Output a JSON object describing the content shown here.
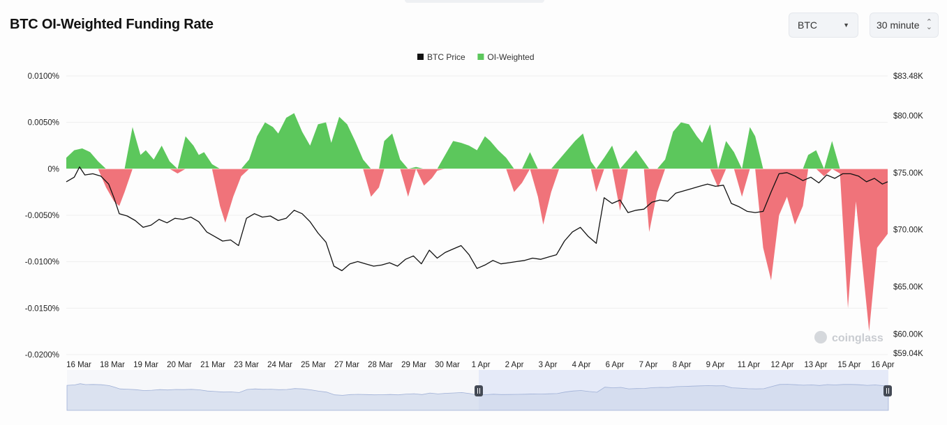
{
  "header": {
    "title": "BTC OI-Weighted Funding Rate",
    "coin_select": "BTC",
    "interval_select": "30 minute"
  },
  "watermark": "coinglass",
  "colors": {
    "positive": "#5cc75c",
    "negative": "#f0737a",
    "price": "#111111",
    "navigator": "#dfe6f7"
  },
  "chart_data": {
    "type": "area",
    "title": "BTC OI-Weighted Funding Rate",
    "legend": [
      {
        "name": "BTC Price",
        "color": "#111111"
      },
      {
        "name": "OI-Weighted",
        "color": "#5cc75c"
      }
    ],
    "legend_position": "top-center",
    "y_left": {
      "ticks": [
        "0.0100%",
        "0.0050%",
        "0%",
        "-0.0050%",
        "-0.0100%",
        "-0.0150%",
        "-0.0200%"
      ],
      "tick_values": [
        0.01,
        0.005,
        0,
        -0.005,
        -0.01,
        -0.015,
        -0.02
      ],
      "range": [
        -0.02,
        0.01
      ],
      "unit": "%"
    },
    "y_right": {
      "ticks": [
        "$83.48K",
        "$80.00K",
        "$75.00K",
        "$70.00K",
        "$65.00K",
        "$60.00K",
        "$59.04K"
      ],
      "tick_values": [
        83.48,
        80,
        75,
        70,
        65,
        60,
        59.04
      ],
      "range": [
        59.04,
        83.48
      ],
      "unit": "$K"
    },
    "x_ticks": [
      "16 Mar",
      "18 Mar",
      "19 Mar",
      "20 Mar",
      "21 Mar",
      "23 Mar",
      "24 Mar",
      "25 Mar",
      "27 Mar",
      "28 Mar",
      "29 Mar",
      "30 Mar",
      "1 Apr",
      "2 Apr",
      "3 Apr",
      "4 Apr",
      "6 Apr",
      "7 Apr",
      "8 Apr",
      "9 Apr",
      "11 Apr",
      "12 Apr",
      "13 Apr",
      "15 Apr",
      "16 Apr"
    ],
    "x_range": [
      0,
      31
    ],
    "series": [
      {
        "name": "OI-Weighted",
        "axis": "left",
        "x": [
          0,
          0.3,
          0.6,
          0.9,
          1.2,
          1.5,
          1.8,
          2.0,
          2.2,
          2.5,
          2.8,
          3.0,
          3.3,
          3.6,
          3.9,
          4.2,
          4.5,
          4.8,
          5.0,
          5.2,
          5.5,
          5.8,
          6.0,
          6.3,
          6.6,
          6.9,
          7.2,
          7.5,
          7.8,
          8.0,
          8.3,
          8.6,
          8.9,
          9.2,
          9.5,
          9.8,
          10.0,
          10.3,
          10.6,
          10.9,
          11.2,
          11.5,
          11.8,
          12.0,
          12.3,
          12.6,
          12.9,
          13.2,
          13.5,
          13.8,
          14.0,
          14.3,
          14.6,
          14.9,
          15.2,
          15.5,
          15.8,
          16.0,
          16.3,
          16.6,
          16.9,
          17.2,
          17.5,
          17.8,
          18.0,
          18.3,
          18.6,
          18.9,
          19.2,
          19.5,
          19.8,
          20.0,
          20.3,
          20.6,
          20.9,
          21.2,
          21.5,
          21.8,
          22.0,
          22.3,
          22.6,
          22.9,
          23.2,
          23.5,
          23.8,
          24.0,
          24.3,
          24.6,
          24.9,
          25.2,
          25.5,
          25.8,
          26.0,
          26.3,
          26.6,
          26.9,
          27.2,
          27.5,
          27.8,
          28.0,
          28.3,
          28.6,
          28.9,
          29.2,
          29.5,
          29.8,
          30.0,
          30.3,
          30.6,
          31.0
        ],
        "values": [
          0.0012,
          0.002,
          0.0022,
          0.0018,
          0.0008,
          -0.002,
          -0.0035,
          -0.004,
          -0.0025,
          0.0045,
          0.0015,
          0.002,
          0.001,
          0.0025,
          0.0008,
          -0.0005,
          0.0035,
          0.0025,
          0.0015,
          0.0018,
          0.0005,
          -0.004,
          -0.0058,
          -0.003,
          -0.0008,
          0.001,
          0.0035,
          0.005,
          0.0045,
          0.0038,
          0.0055,
          0.006,
          0.004,
          0.0025,
          0.0048,
          0.005,
          0.0028,
          0.0056,
          0.0048,
          0.003,
          0.001,
          -0.003,
          -0.002,
          0.003,
          0.0038,
          0.001,
          -0.003,
          0.0002,
          -0.0018,
          -0.001,
          -0.0002,
          0.0015,
          0.003,
          0.0028,
          0.0025,
          0.002,
          0.0035,
          0.003,
          0.002,
          0.0012,
          -0.0025,
          -0.0015,
          0.0018,
          -0.003,
          -0.006,
          -0.0025,
          0.001,
          0.002,
          0.003,
          0.0038,
          0.0008,
          -0.0025,
          0.0012,
          0.0025,
          -0.0045,
          0.001,
          0.002,
          0.0008,
          -0.0068,
          -0.0025,
          0.001,
          0.004,
          0.005,
          0.0048,
          0.0035,
          0.0028,
          0.0048,
          -0.002,
          0.003,
          0.0018,
          -0.003,
          0.0045,
          0.0035,
          -0.0085,
          -0.012,
          -0.005,
          -0.003,
          -0.006,
          -0.004,
          0.0015,
          0.002,
          -0.0008,
          0.003,
          -0.0005,
          -0.015,
          -0.0035,
          -0.009,
          -0.0175,
          -0.0085,
          -0.007
        ]
      },
      {
        "name": "BTC Price",
        "axis": "right",
        "x": [
          0,
          0.3,
          0.5,
          0.7,
          1.0,
          1.3,
          1.6,
          1.8,
          2.0,
          2.3,
          2.6,
          2.9,
          3.2,
          3.5,
          3.8,
          4.1,
          4.4,
          4.7,
          5.0,
          5.3,
          5.6,
          5.9,
          6.2,
          6.5,
          6.8,
          7.1,
          7.4,
          7.7,
          8.0,
          8.3,
          8.6,
          8.9,
          9.2,
          9.5,
          9.8,
          10.1,
          10.4,
          10.7,
          11.0,
          11.3,
          11.6,
          11.9,
          12.2,
          12.5,
          12.8,
          13.1,
          13.4,
          13.7,
          14.0,
          14.3,
          14.6,
          14.9,
          15.2,
          15.5,
          15.8,
          16.1,
          16.4,
          16.7,
          17.0,
          17.3,
          17.6,
          17.9,
          18.2,
          18.5,
          18.8,
          19.1,
          19.4,
          19.7,
          20.0,
          20.3,
          20.6,
          20.9,
          21.2,
          21.5,
          21.8,
          22.1,
          22.4,
          22.7,
          23.0,
          23.3,
          23.6,
          23.9,
          24.2,
          24.5,
          24.8,
          25.1,
          25.4,
          25.7,
          26.0,
          26.3,
          26.6,
          26.9,
          27.2,
          27.5,
          27.8,
          28.1,
          28.4,
          28.7,
          29.0,
          29.3,
          29.6,
          29.9,
          30.2,
          30.5,
          30.8,
          31.0
        ],
        "values": [
          74.2,
          74.6,
          75.5,
          74.8,
          74.9,
          74.7,
          74.0,
          72.8,
          71.4,
          71.2,
          70.8,
          70.2,
          70.4,
          70.9,
          70.6,
          71.0,
          70.9,
          71.1,
          70.7,
          69.8,
          69.4,
          69.0,
          69.1,
          68.6,
          71.0,
          71.4,
          71.1,
          71.2,
          70.8,
          71.0,
          71.7,
          71.4,
          70.7,
          69.7,
          68.9,
          66.8,
          66.4,
          67.0,
          67.2,
          67.0,
          66.8,
          66.9,
          67.1,
          66.8,
          67.4,
          67.7,
          67.0,
          68.2,
          67.5,
          68.0,
          68.3,
          68.6,
          67.8,
          66.6,
          66.9,
          67.3,
          67.0,
          67.1,
          67.2,
          67.3,
          67.5,
          67.4,
          67.6,
          67.8,
          69.0,
          69.8,
          70.2,
          69.4,
          68.8,
          72.8,
          72.3,
          72.6,
          71.5,
          71.7,
          71.8,
          72.4,
          72.6,
          72.5,
          73.2,
          73.4,
          73.6,
          73.8,
          74.0,
          73.8,
          73.9,
          72.3,
          72.0,
          71.6,
          71.5,
          71.6,
          73.3,
          74.9,
          75.0,
          74.7,
          74.3,
          74.6,
          74.1,
          74.8,
          74.5,
          74.9,
          74.9,
          74.7,
          74.2,
          74.5,
          74.0,
          74.2
        ]
      }
    ],
    "navigator": {
      "selected_range": [
        "1 Apr",
        "16 Apr"
      ]
    }
  }
}
